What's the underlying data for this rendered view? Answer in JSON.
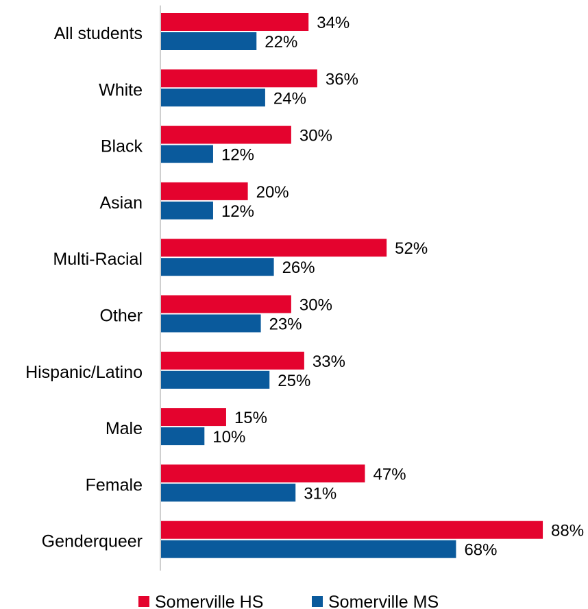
{
  "chart_data": {
    "type": "bar",
    "orientation": "horizontal",
    "title": "",
    "xlabel": "",
    "ylabel": "",
    "xlim": [
      0,
      88
    ],
    "grid": false,
    "legend_position": "bottom",
    "categories": [
      "All students",
      "White",
      "Black",
      "Asian",
      "Multi-Racial",
      "Other",
      "Hispanic/Latino",
      "Male",
      "Female",
      "Genderqueer"
    ],
    "series": [
      {
        "name": "Somerville HS",
        "color": "#e4032e",
        "values": [
          34,
          36,
          30,
          20,
          52,
          30,
          33,
          15,
          47,
          88
        ],
        "labels": [
          "34%",
          "36%",
          "30%",
          "20%",
          "52%",
          "30%",
          "33%",
          "15%",
          "47%",
          "88%"
        ]
      },
      {
        "name": "Somerville MS",
        "color": "#0a5a9c",
        "values": [
          22,
          24,
          12,
          12,
          26,
          23,
          25,
          10,
          31,
          68
        ],
        "labels": [
          "22%",
          "24%",
          "12%",
          "12%",
          "26%",
          "23%",
          "25%",
          "10%",
          "31%",
          "68%"
        ]
      }
    ]
  }
}
